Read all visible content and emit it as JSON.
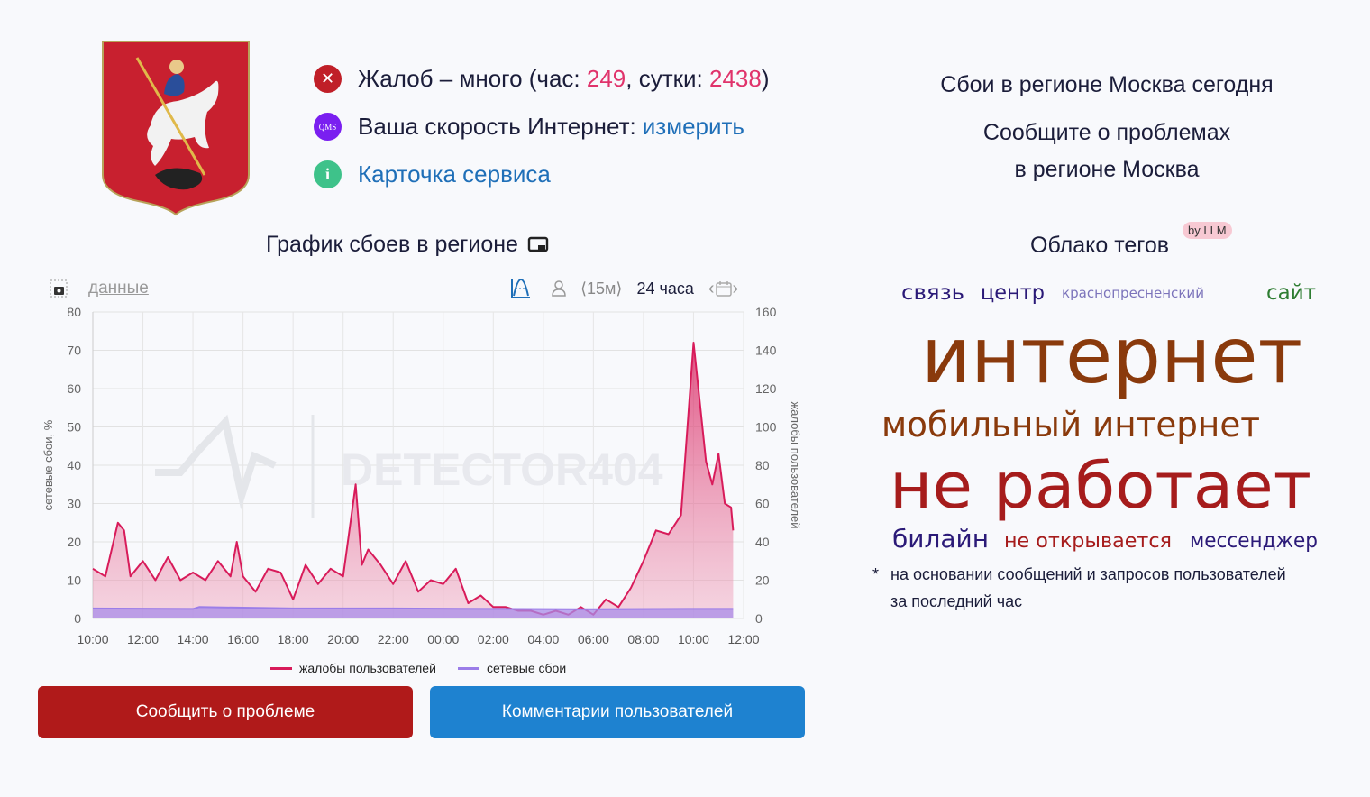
{
  "status": {
    "complaints_prefix": "Жалоб – много (час: ",
    "complaints_hour": "249",
    "complaints_sep": ", сутки: ",
    "complaints_day": "2438",
    "complaints_suffix": ")",
    "speed_label": "Ваша скорость Интернет: ",
    "speed_link": "измерить",
    "qms_badge": "QMS",
    "service_card": "Карточка сервиса",
    "info_glyph": "i",
    "error_glyph": "✕"
  },
  "chart_title": "График сбоев в регионе",
  "toolbar": {
    "data_link": "данные",
    "interval": "⟨15м⟩",
    "range": "24 часа"
  },
  "right": {
    "title": "Сбои в регионе Москва сегодня",
    "report_line1": "Сообщите о проблемах",
    "report_line2": "в регионе Москва",
    "cloud_title": "Облако тегов",
    "cloud_badge": "by LLM",
    "note_star": "*",
    "note_line1": "на основании сообщений и запросов пользователей",
    "note_line2": "за последний час"
  },
  "tag_cloud": [
    {
      "text": "связь",
      "color": "#2b1a78"
    },
    {
      "text": "центр",
      "color": "#2b1a78"
    },
    {
      "text": "сайт",
      "color": "#2e7d32"
    },
    {
      "text": "интернет",
      "color": "#8a3a0c"
    },
    {
      "text": "мобильный интернет",
      "color": "#8a3a0c"
    },
    {
      "text": "не работает",
      "color": "#a61c1c"
    },
    {
      "text": "не открывается",
      "color": "#a61c1c"
    },
    {
      "text": "билайн",
      "color": "#2b1a78"
    },
    {
      "text": "краснопресненский",
      "color": "#7c74bb"
    },
    {
      "text": "мессенджер",
      "color": "#2b1a78"
    }
  ],
  "buttons": {
    "report": "Сообщить о проблеме",
    "comments": "Комментарии пользователей"
  },
  "colors": {
    "report_button": "#b01a1a",
    "comments_button": "#1e82d0",
    "complaints": "#d81b5a",
    "network": "#9b7de8"
  },
  "chart_data": {
    "type": "area",
    "watermark": "DETECTOR404",
    "ylabel_left": "сетевые сбои, %",
    "ylabel_right": "жалобы пользователей",
    "ylim_left": [
      0,
      80
    ],
    "ylim_right": [
      0,
      160
    ],
    "yticks_left": [
      "0",
      "10",
      "20",
      "30",
      "40",
      "50",
      "60",
      "70",
      "80"
    ],
    "yticks_right": [
      "0",
      "20",
      "40",
      "60",
      "80",
      "100",
      "120",
      "140",
      "160"
    ],
    "xticks": [
      "10:00",
      "12:00",
      "14:00",
      "16:00",
      "18:00",
      "20:00",
      "22:00",
      "00:00",
      "02:00",
      "04:00",
      "06:00",
      "08:00",
      "10:00",
      "12:00"
    ],
    "grid": true,
    "legend_position": "bottom",
    "series": [
      {
        "name": "жалобы пользователей",
        "axis": "right",
        "x": [
          "10:00",
          "10:30",
          "11:00",
          "11:15",
          "11:30",
          "12:00",
          "12:30",
          "13:00",
          "13:30",
          "14:00",
          "14:30",
          "15:00",
          "15:30",
          "15:45",
          "16:00",
          "16:30",
          "17:00",
          "17:30",
          "18:00",
          "18:30",
          "19:00",
          "19:30",
          "20:00",
          "20:30",
          "20:45",
          "21:00",
          "21:30",
          "22:00",
          "22:30",
          "23:00",
          "23:30",
          "00:00",
          "00:30",
          "01:00",
          "01:30",
          "02:00",
          "02:30",
          "03:00",
          "03:30",
          "04:00",
          "04:30",
          "05:00",
          "05:30",
          "06:00",
          "06:30",
          "07:00",
          "07:30",
          "08:00",
          "08:30",
          "09:00",
          "09:30",
          "10:00",
          "10:30",
          "10:45",
          "11:00",
          "11:15",
          "11:30",
          "11:35"
        ],
        "values": [
          26,
          22,
          50,
          46,
          22,
          30,
          20,
          32,
          20,
          24,
          20,
          30,
          22,
          40,
          22,
          14,
          26,
          24,
          10,
          28,
          18,
          26,
          22,
          70,
          28,
          36,
          28,
          18,
          30,
          14,
          20,
          18,
          26,
          8,
          12,
          6,
          6,
          4,
          4,
          2,
          4,
          2,
          6,
          2,
          10,
          6,
          16,
          30,
          46,
          44,
          54,
          144,
          82,
          70,
          86,
          60,
          58,
          46
        ]
      },
      {
        "name": "сетевые сбои",
        "axis": "left",
        "x": [
          "10:00",
          "14:00",
          "14:15",
          "18:00",
          "22:00",
          "02:00",
          "06:00",
          "10:00",
          "11:35"
        ],
        "values": [
          2.6,
          2.5,
          3.0,
          2.6,
          2.6,
          2.5,
          2.4,
          2.5,
          2.5
        ]
      }
    ]
  }
}
